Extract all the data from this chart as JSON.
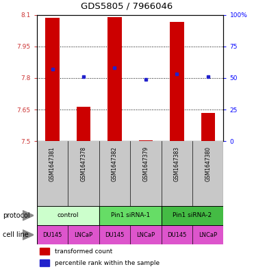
{
  "title": "GDS5805 / 7966046",
  "samples": [
    "GSM1647381",
    "GSM1647378",
    "GSM1647382",
    "GSM1647379",
    "GSM1647383",
    "GSM1647380"
  ],
  "bar_values": [
    8.085,
    7.665,
    8.09,
    7.505,
    8.065,
    7.635
  ],
  "bar_bottom": 7.5,
  "percentile_values": [
    57,
    51,
    58,
    49,
    53,
    51
  ],
  "ylim_left": [
    7.5,
    8.1
  ],
  "ylim_right": [
    0,
    100
  ],
  "yticks_left": [
    7.5,
    7.65,
    7.8,
    7.95,
    8.1
  ],
  "ytick_labels_left": [
    "7.5",
    "7.65",
    "7.8",
    "7.95",
    "8.1"
  ],
  "yticks_right": [
    0,
    25,
    50,
    75,
    100
  ],
  "ytick_labels_right": [
    "0",
    "25",
    "50",
    "75",
    "100%"
  ],
  "dotted_lines": [
    7.95,
    7.8,
    7.65
  ],
  "bar_color": "#cc0000",
  "dot_color": "#2222cc",
  "protocols": [
    {
      "label": "control",
      "span": [
        0,
        2
      ],
      "color": "#ccffcc"
    },
    {
      "label": "Pin1 siRNA-1",
      "span": [
        2,
        4
      ],
      "color": "#66dd66"
    },
    {
      "label": "Pin1 siRNA-2",
      "span": [
        4,
        6
      ],
      "color": "#44bb44"
    }
  ],
  "cell_color": "#dd55cc",
  "cl_labels": [
    "DU145",
    "LNCaP",
    "DU145",
    "LNCaP",
    "DU145",
    "LNCaP"
  ],
  "legend_red_label": "transformed count",
  "legend_blue_label": "percentile rank within the sample",
  "protocol_label": "protocol",
  "cell_line_label": "cell line",
  "bar_width": 0.45,
  "sample_positions": [
    0,
    1,
    2,
    3,
    4,
    5
  ],
  "sample_bg_color": "#c8c8c8"
}
